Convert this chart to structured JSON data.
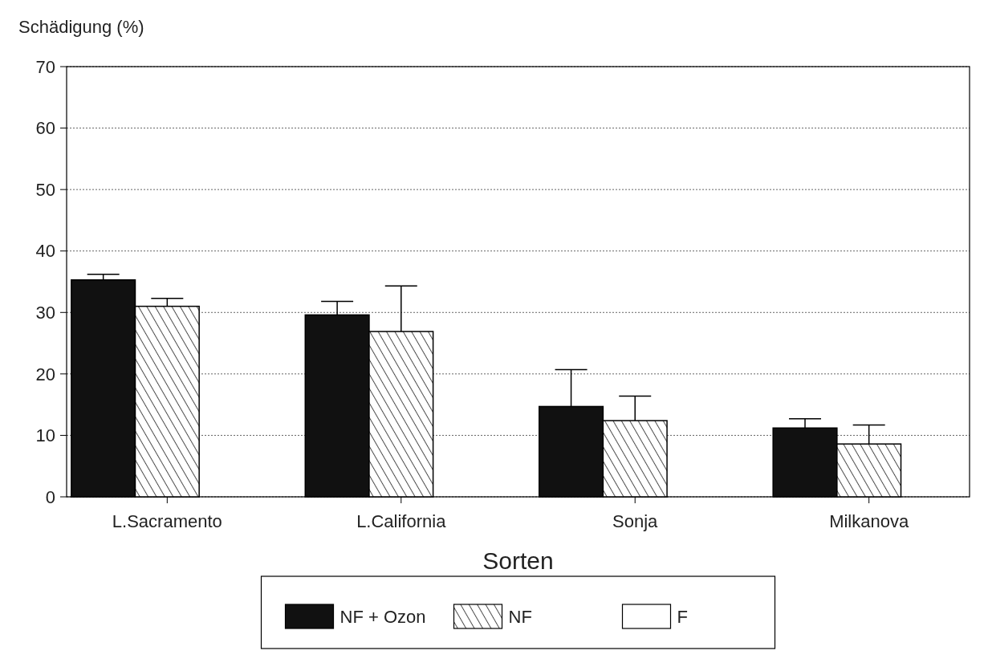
{
  "chart_data": {
    "type": "bar",
    "ylabel": "Schädigung (%)",
    "xlabel": "Sorten",
    "categories": [
      "L.Sacramento",
      "L.California",
      "Sonja",
      "Milkanova"
    ],
    "series": [
      {
        "name": "NF + Ozon",
        "color": "#111111",
        "values": [
          35.3,
          29.6,
          14.7,
          11.2
        ],
        "errors": [
          [
            35.3,
            36.2
          ],
          [
            29.6,
            31.8
          ],
          [
            14.7,
            20.7
          ],
          [
            11.2,
            12.7
          ]
        ]
      },
      {
        "name": "NF",
        "color": "#000000",
        "values": [
          31,
          26.9,
          12.4,
          8.6
        ],
        "errors": [
          [
            31,
            32.3
          ],
          [
            26.9,
            34.3
          ],
          [
            12.4,
            16.4
          ],
          [
            8.6,
            11.7
          ]
        ]
      },
      {
        "name": "F",
        "color": "#ffffff",
        "values": [
          0,
          0,
          0,
          0
        ]
      }
    ],
    "ylim": [
      0,
      70
    ],
    "yticks": [
      0,
      10,
      20,
      30,
      40,
      50,
      60,
      70
    ],
    "grid": "y",
    "legend": "bottom"
  }
}
